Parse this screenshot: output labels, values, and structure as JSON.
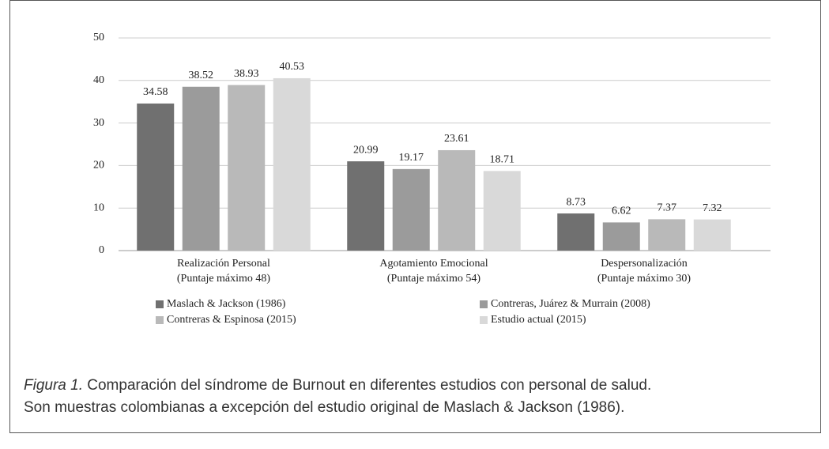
{
  "chart_data": {
    "type": "bar",
    "categories": [
      [
        "Realización Personal",
        "(Puntaje máximo 48)"
      ],
      [
        "Agotamiento Emocional",
        "(Puntaje máximo 54)"
      ],
      [
        "Despersonalización",
        "(Puntaje máximo 30)"
      ]
    ],
    "series": [
      {
        "name": "Maslach & Jackson (1986)",
        "color": "#707070",
        "values": [
          34.58,
          20.99,
          8.73
        ]
      },
      {
        "name": "Contreras, Juárez & Murrain (2008)",
        "color": "#9b9b9b",
        "values": [
          38.52,
          19.17,
          6.62
        ]
      },
      {
        "name": "Contreras & Espinosa (2015)",
        "color": "#b9b9b9",
        "values": [
          38.93,
          23.61,
          7.37
        ]
      },
      {
        "name": "Estudio actual (2015)",
        "color": "#d9d9d9",
        "values": [
          40.53,
          18.71,
          7.32
        ]
      }
    ],
    "ylim": [
      0,
      50
    ],
    "yticks": [
      0,
      10,
      20,
      30,
      40,
      50
    ],
    "grid": true,
    "legend": "bottom"
  },
  "caption": {
    "label": "Figura 1.",
    "lines": [
      "Comparación del síndrome de Burnout en diferentes estudios con personal de salud.",
      "Son muestras colombianas a excepción del estudio original de Maslach & Jackson (1986)."
    ]
  }
}
